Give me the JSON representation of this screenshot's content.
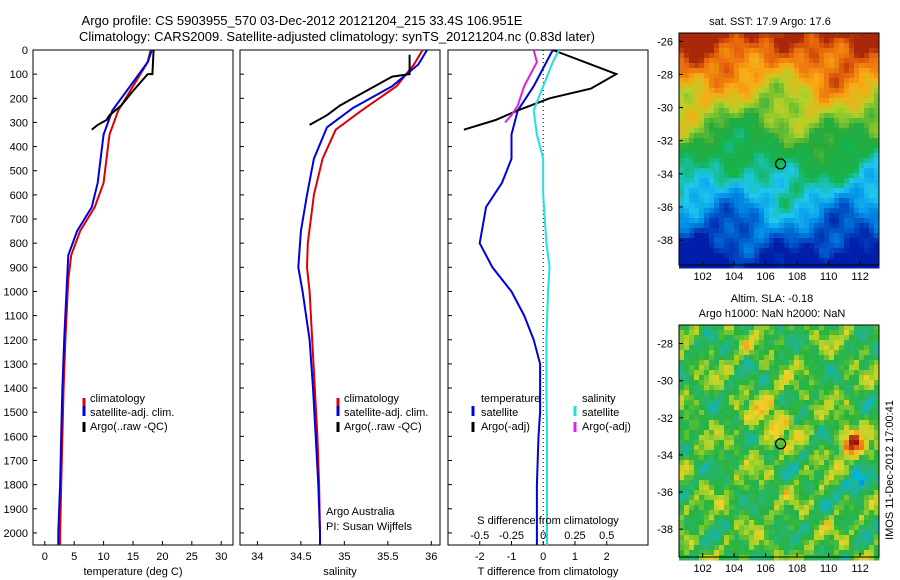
{
  "header": {
    "line1": "Argo profile: CS 5903955_570 03-Dec-2012 20121204_215 33.4S 106.951E",
    "line2": "Climatology: CARS2009. Satellite-adjusted climatology: synTS_20121204.nc (0.83d later)"
  },
  "colors": {
    "climatology": "#dd0000",
    "satellite": "#0000dd",
    "argo": "#000000",
    "sal_satellite": "#22e0e0",
    "sal_argo": "#e020e0"
  },
  "chart_data": [
    {
      "type": "line",
      "name": "temperature",
      "xlabel": "temperature (deg C)",
      "ylabel": "",
      "xlim": [
        -2,
        32
      ],
      "ylim": [
        2050,
        0
      ],
      "xticks": [
        0,
        5,
        10,
        15,
        20,
        25,
        30
      ],
      "yticks": [
        0,
        100,
        200,
        300,
        400,
        500,
        600,
        700,
        800,
        900,
        1000,
        1100,
        1200,
        1300,
        1400,
        1500,
        1600,
        1700,
        1800,
        1900,
        2000
      ],
      "legend": [
        "climatology",
        "satellite-adj. clim.",
        "Argo(..raw -QC)"
      ],
      "series": [
        {
          "name": "climatology",
          "color": "#dd0000",
          "points": [
            [
              18,
              0
            ],
            [
              17.5,
              50
            ],
            [
              15,
              150
            ],
            [
              12.5,
              250
            ],
            [
              11,
              350
            ],
            [
              10.5,
              450
            ],
            [
              10,
              550
            ],
            [
              8.5,
              650
            ],
            [
              6,
              750
            ],
            [
              4.5,
              850
            ],
            [
              4,
              950
            ],
            [
              3.8,
              1050
            ],
            [
              3.5,
              1200
            ],
            [
              3.2,
              1400
            ],
            [
              3,
              1600
            ],
            [
              2.8,
              1800
            ],
            [
              2.6,
              2000
            ],
            [
              2.6,
              2050
            ]
          ]
        },
        {
          "name": "satellite-adj. clim.",
          "color": "#0000dd",
          "points": [
            [
              18.2,
              0
            ],
            [
              17.5,
              50
            ],
            [
              14.5,
              150
            ],
            [
              11.5,
              250
            ],
            [
              10,
              350
            ],
            [
              9.5,
              450
            ],
            [
              9,
              550
            ],
            [
              8,
              650
            ],
            [
              5.5,
              750
            ],
            [
              4,
              850
            ],
            [
              3.8,
              950
            ],
            [
              3.6,
              1050
            ],
            [
              3.3,
              1200
            ],
            [
              3,
              1400
            ],
            [
              2.8,
              1600
            ],
            [
              2.6,
              1800
            ],
            [
              2.3,
              2000
            ],
            [
              2.3,
              2050
            ]
          ]
        },
        {
          "name": "Argo(..raw -QC)",
          "color": "#000000",
          "points": [
            [
              18.5,
              0
            ],
            [
              18.3,
              100
            ],
            [
              17.5,
              100
            ],
            [
              15,
              170
            ],
            [
              13,
              230
            ],
            [
              11,
              270
            ],
            [
              10.5,
              290
            ],
            [
              9,
              310
            ],
            [
              8,
              330
            ]
          ]
        }
      ]
    },
    {
      "type": "line",
      "name": "salinity",
      "xlabel": "salinity",
      "ylabel": "",
      "xlim": [
        33.8,
        36.1
      ],
      "ylim": [
        2050,
        0
      ],
      "xticks": [
        34,
        34.5,
        35,
        35.5,
        36
      ],
      "legend": [
        "climatology",
        "satellite-adj. clim.",
        "Argo(..raw -QC)"
      ],
      "annotation": [
        "Argo Australia",
        "PI: Susan Wijffels"
      ],
      "series": [
        {
          "name": "climatology",
          "color": "#dd0000",
          "points": [
            [
              35.9,
              0
            ],
            [
              35.8,
              60
            ],
            [
              35.6,
              150
            ],
            [
              35.2,
              250
            ],
            [
              34.9,
              330
            ],
            [
              34.75,
              450
            ],
            [
              34.65,
              600
            ],
            [
              34.58,
              800
            ],
            [
              34.57,
              900
            ],
            [
              34.6,
              1000
            ],
            [
              34.63,
              1200
            ],
            [
              34.66,
              1400
            ],
            [
              34.69,
              1600
            ],
            [
              34.71,
              1800
            ],
            [
              34.72,
              2000
            ],
            [
              34.72,
              2050
            ]
          ]
        },
        {
          "name": "satellite-adj. clim.",
          "color": "#0000dd",
          "points": [
            [
              35.95,
              0
            ],
            [
              35.85,
              60
            ],
            [
              35.55,
              150
            ],
            [
              35.1,
              240
            ],
            [
              34.8,
              320
            ],
            [
              34.65,
              450
            ],
            [
              34.57,
              600
            ],
            [
              34.5,
              750
            ],
            [
              34.47,
              900
            ],
            [
              34.52,
              1000
            ],
            [
              34.6,
              1200
            ],
            [
              34.64,
              1400
            ],
            [
              34.67,
              1600
            ],
            [
              34.7,
              1800
            ],
            [
              34.72,
              2000
            ],
            [
              34.72,
              2050
            ]
          ]
        },
        {
          "name": "Argo(..raw -QC)",
          "color": "#000000",
          "points": [
            [
              35.75,
              20
            ],
            [
              35.75,
              100
            ],
            [
              35.55,
              110
            ],
            [
              35.3,
              160
            ],
            [
              35.1,
              200
            ],
            [
              34.95,
              230
            ],
            [
              34.8,
              270
            ],
            [
              34.6,
              310
            ]
          ]
        }
      ]
    },
    {
      "type": "line",
      "name": "difference",
      "xlabel": "T difference from climatology",
      "xlabel_top": "S difference from climatology",
      "xlim": [
        -3,
        3.3
      ],
      "ylim": [
        2050,
        0
      ],
      "xticks": [
        -2,
        -1,
        0,
        1,
        2
      ],
      "sticks_labels": [
        "-0.5",
        "-0.25",
        "0",
        "0.25",
        "0.5"
      ],
      "legend": {
        "temperature": [
          "satellite",
          "Argo(-adj)"
        ],
        "salinity": [
          "satellite",
          "Argo(-adj)"
        ]
      },
      "series": [
        {
          "name": "temperature satellite",
          "color": "#0000dd",
          "points": [
            [
              0.3,
              0
            ],
            [
              0.1,
              50
            ],
            [
              -0.3,
              150
            ],
            [
              -0.8,
              250
            ],
            [
              -1,
              350
            ],
            [
              -1,
              450
            ],
            [
              -1.3,
              550
            ],
            [
              -1.8,
              650
            ],
            [
              -2,
              800
            ],
            [
              -1.6,
              900
            ],
            [
              -1,
              1000
            ],
            [
              -0.6,
              1100
            ],
            [
              -0.3,
              1200
            ],
            [
              -0.1,
              1300
            ],
            [
              -0.1,
              1400
            ],
            [
              -0.1,
              1500
            ],
            [
              -0.15,
              1600
            ],
            [
              -0.2,
              1800
            ],
            [
              -0.2,
              2000
            ],
            [
              -0.2,
              2050
            ]
          ]
        },
        {
          "name": "temperature Argo(-adj)",
          "color": "#000000",
          "points": [
            [
              0.3,
              0
            ],
            [
              2.3,
              100
            ],
            [
              1.5,
              160
            ],
            [
              0.2,
              200
            ],
            [
              -0.8,
              250
            ],
            [
              -1.5,
              290
            ],
            [
              -2.5,
              330
            ]
          ]
        },
        {
          "name": "salinity satellite",
          "color": "#22e0e0",
          "points": [
            [
              0.5,
              0
            ],
            [
              0.3,
              50
            ],
            [
              0,
              150
            ],
            [
              -0.3,
              250
            ],
            [
              -0.2,
              350
            ],
            [
              0,
              450
            ],
            [
              0,
              600
            ],
            [
              0.1,
              800
            ],
            [
              0.2,
              900
            ],
            [
              0.15,
              1000
            ],
            [
              0.1,
              1200
            ],
            [
              0.1,
              1400
            ],
            [
              0.12,
              1600
            ],
            [
              0.12,
              1800
            ],
            [
              0.12,
              2000
            ],
            [
              0.12,
              2050
            ]
          ]
        },
        {
          "name": "salinity Argo(-adj)",
          "color": "#e020e0",
          "points": [
            [
              -0.3,
              0
            ],
            [
              -0.2,
              50
            ],
            [
              -0.4,
              100
            ],
            [
              -0.6,
              150
            ],
            [
              -0.8,
              230
            ],
            [
              -1,
              270
            ],
            [
              -1.2,
              300
            ]
          ]
        }
      ]
    },
    {
      "type": "heatmap",
      "name": "sst-map",
      "title": "sat. SST: 17.9 Argo: 17.6",
      "xlim": [
        100.5,
        113.2
      ],
      "ylim": [
        -39.5,
        -25.5
      ],
      "xticks": [
        102,
        104,
        106,
        108,
        110,
        112
      ],
      "yticks": [
        -26,
        -28,
        -30,
        -32,
        -34,
        -36,
        -38
      ],
      "marker": {
        "lon": 106.95,
        "lat": -33.4
      }
    },
    {
      "type": "heatmap",
      "name": "sla-map",
      "title": "Altim. SLA: -0.18",
      "subtitle": "Argo h1000: NaN h2000: NaN",
      "xlim": [
        100.5,
        113.2
      ],
      "ylim": [
        -39.5,
        -27
      ],
      "xticks": [
        102,
        104,
        106,
        108,
        110,
        112
      ],
      "yticks": [
        -28,
        -30,
        -32,
        -34,
        -36,
        -38
      ],
      "marker": {
        "lon": 106.95,
        "lat": -33.4
      },
      "side_label": "IMOS 11-Dec-2012 17:00:41"
    }
  ]
}
